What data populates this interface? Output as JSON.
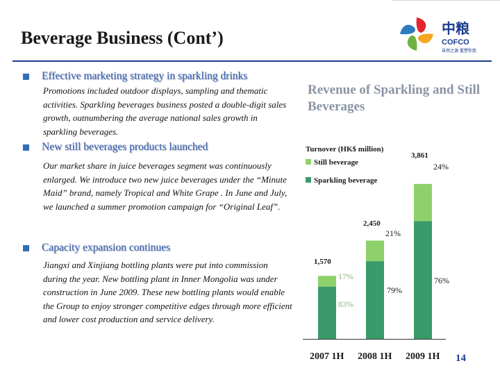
{
  "slide": {
    "title": "Beverage Business (Cont’)",
    "page_number": "14",
    "logo": {
      "brand_cn": "中粮",
      "brand_en": "COFCO",
      "tagline": "自然之源 重塑你我"
    }
  },
  "sections": [
    {
      "heading": "Effective marketing strategy in sparkling drinks",
      "body": "Promotions included outdoor displays, sampling and thematic activities. Sparkling beverages business posted a double-digit sales growth, outnumbering the average national sales growth in sparkling beverages."
    },
    {
      "heading": "New still beverages products launched",
      "body": "Our market share in juice beverages segment was continuously enlarged.  We introduce  two new juice beverages under the “Minute Maid” brand, namely Tropical and White Grape . In June and July, we launched a summer promotion campaign for “Original Leaf”."
    },
    {
      "heading": "Capacity expansion continues",
      "body": " Jiangxi and Xinjiang bottling plants were put into commission  during the year. New bottling plant in Inner Mongolia was under construction in June 2009. These new bottling plants would enable the Group to enjoy stronger competitive edges through more efficient and lower cost production and service delivery."
    }
  ],
  "chart_data": {
    "type": "bar",
    "stacked": true,
    "title": "Revenue of Sparkling and Still Beverages",
    "ylabel": "Turnover (HK$ million)",
    "categories": [
      "2007 1H",
      "2008 1H",
      "2009 1H"
    ],
    "totals": [
      "1,570",
      "2,450",
      "3,861"
    ],
    "total_values": [
      1570,
      2450,
      3861
    ],
    "series": [
      {
        "name": "Sparkling beverage",
        "color": "#3a9a6a",
        "values": [
          1303,
          1936,
          2934
        ],
        "labels": [
          "83%",
          "79%",
          "76%"
        ]
      },
      {
        "name": "Still beverage",
        "color": "#8ed16a",
        "values": [
          267,
          514,
          927
        ],
        "labels": [
          "17%",
          "21%",
          "24%"
        ]
      }
    ],
    "ylim": [
      0,
      3861
    ],
    "legend": "top-left",
    "grid": false
  }
}
